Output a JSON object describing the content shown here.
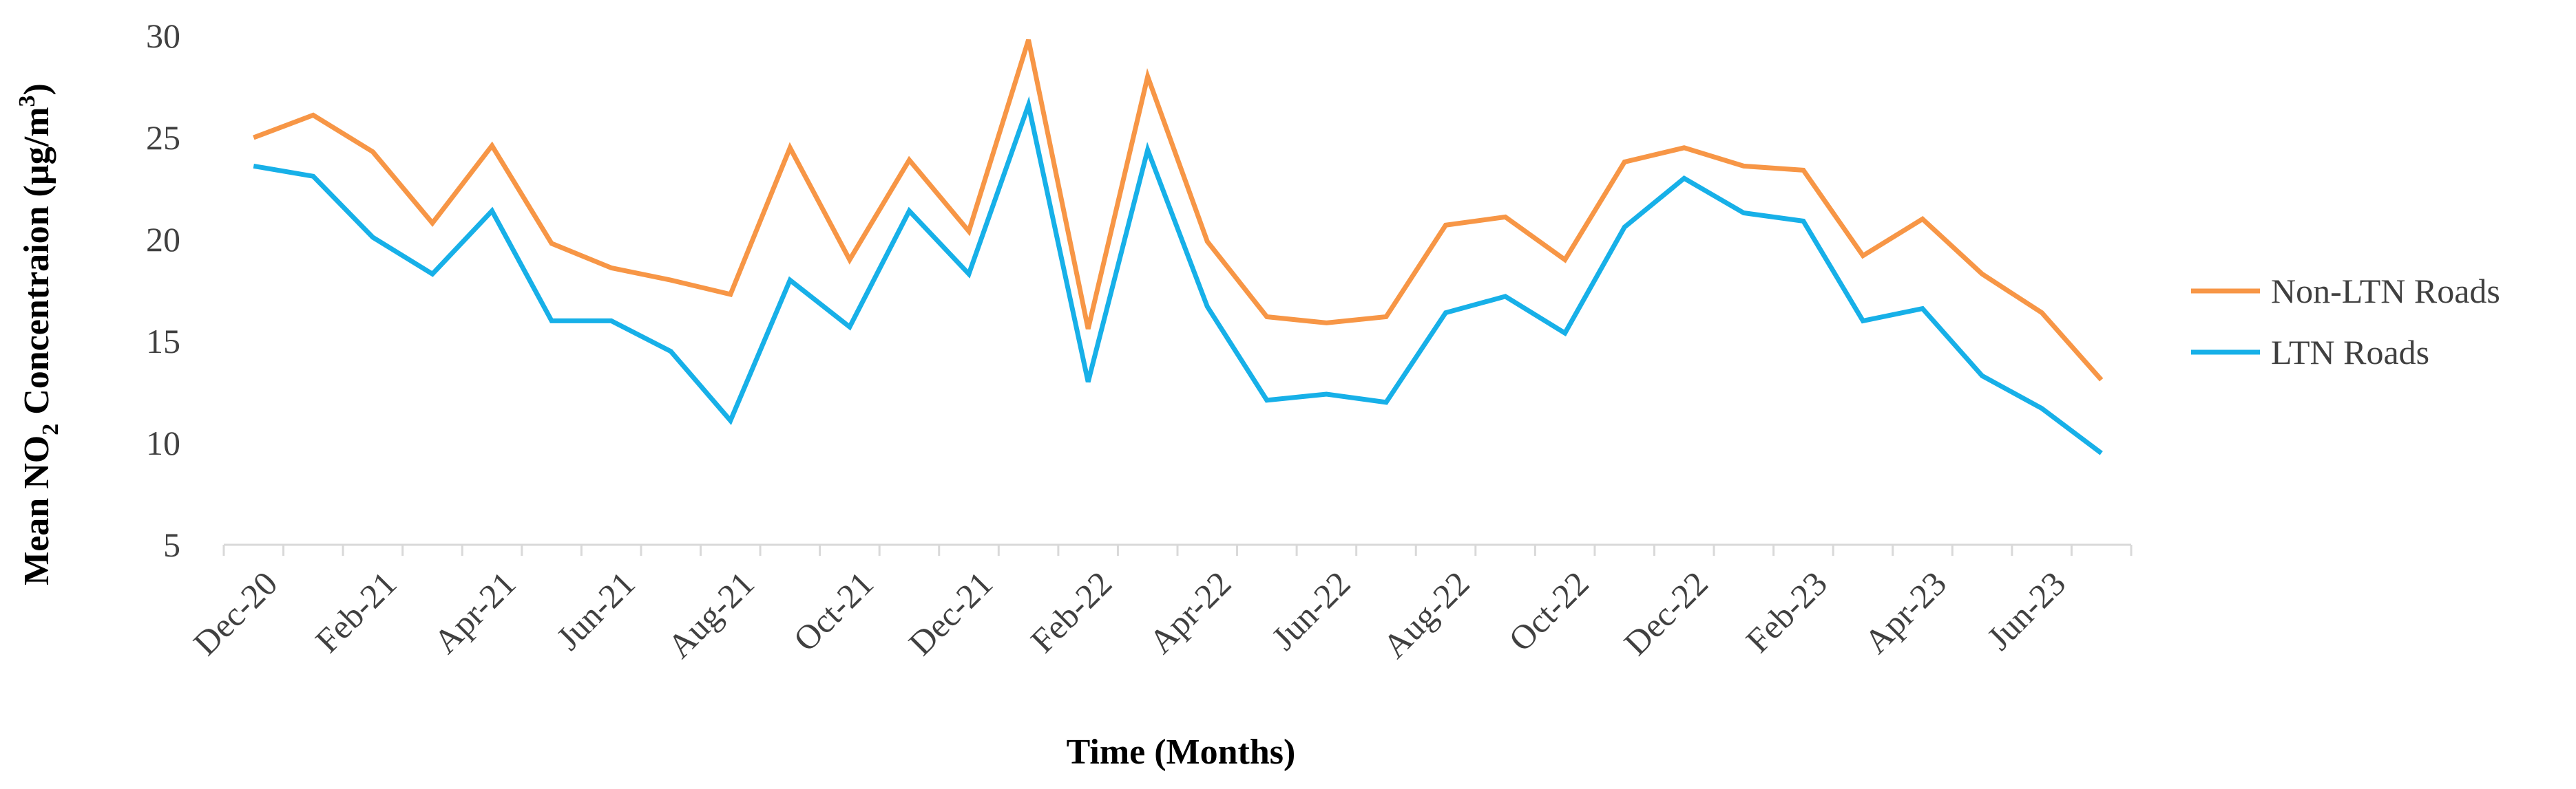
{
  "chart_data": {
    "type": "line",
    "title": "",
    "xlabel": "Time (Months)",
    "ylabel": {
      "pre": "Mean NO",
      "sub": "2",
      "mid": " Concentraion (µg/m",
      "sup": "3",
      "post": ")"
    },
    "ylim": [
      5,
      30
    ],
    "yticks": [
      "5",
      "10",
      "15",
      "20",
      "25",
      "30"
    ],
    "grid": false,
    "legend_position": "right",
    "x": [
      "Dec-20",
      "Jan-21",
      "Feb-21",
      "Mar-21",
      "Apr-21",
      "May-21",
      "Jun-21",
      "Jul-21",
      "Aug-21",
      "Sep-21",
      "Oct-21",
      "Nov-21",
      "Dec-21",
      "Jan-22",
      "Feb-22",
      "Mar-22",
      "Apr-22",
      "May-22",
      "Jun-22",
      "Jul-22",
      "Aug-22",
      "Sep-22",
      "Oct-22",
      "Nov-22",
      "Dec-22",
      "Jan-23",
      "Feb-23",
      "Mar-23",
      "Apr-23",
      "May-23",
      "Jun-23",
      "Jul-23"
    ],
    "x_tick_labels_shown": [
      "Dec-20",
      "Feb-21",
      "Apr-21",
      "Jun-21",
      "Aug-21",
      "Oct-21",
      "Dec-21",
      "Feb-22",
      "Apr-22",
      "Jun-22",
      "Aug-22",
      "Oct-22",
      "Dec-22",
      "Feb-23",
      "Apr-23",
      "Jun-23"
    ],
    "series": [
      {
        "name": "Non-LTN Roads",
        "color": "#f79646",
        "values": [
          25.0,
          26.1,
          24.3,
          20.8,
          24.6,
          19.8,
          18.6,
          18.0,
          17.3,
          24.5,
          19.0,
          23.9,
          20.4,
          29.8,
          15.6,
          28.0,
          19.9,
          16.2,
          15.9,
          16.2,
          20.7,
          21.1,
          19.0,
          23.8,
          24.5,
          23.6,
          23.4,
          19.2,
          21.0,
          18.3,
          16.4,
          13.1
        ]
      },
      {
        "name": "LTN Roads",
        "color": "#17b0e8",
        "values": [
          23.6,
          23.1,
          20.1,
          18.3,
          21.4,
          16.0,
          16.0,
          14.5,
          11.1,
          18.0,
          15.7,
          21.4,
          18.3,
          26.6,
          13.0,
          24.4,
          16.7,
          12.1,
          12.4,
          12.0,
          16.4,
          17.2,
          15.4,
          20.6,
          23.0,
          21.3,
          20.9,
          16.0,
          16.6,
          13.3,
          11.7,
          9.5
        ]
      }
    ]
  }
}
